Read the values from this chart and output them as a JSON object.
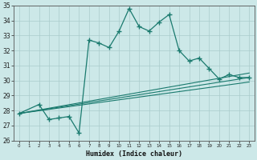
{
  "xlabel": "Humidex (Indice chaleur)",
  "bg_color": "#cce8e8",
  "grid_color": "#aacccc",
  "line_color": "#1a7a6e",
  "xlim": [
    -0.5,
    23.5
  ],
  "ylim": [
    26,
    35
  ],
  "xticks": [
    0,
    1,
    2,
    3,
    4,
    5,
    6,
    7,
    8,
    9,
    10,
    11,
    12,
    13,
    14,
    15,
    16,
    17,
    18,
    19,
    20,
    21,
    22,
    23
  ],
  "yticks": [
    26,
    27,
    28,
    29,
    30,
    31,
    32,
    33,
    34,
    35
  ],
  "series_main": {
    "x": [
      0,
      2,
      3,
      4,
      5,
      6,
      7,
      8,
      9,
      10,
      11,
      12,
      13,
      14,
      15,
      16,
      17,
      18,
      19,
      20,
      21,
      22,
      23
    ],
    "y": [
      27.8,
      28.4,
      27.4,
      27.5,
      27.6,
      26.5,
      32.7,
      32.5,
      32.2,
      33.3,
      34.8,
      33.6,
      33.3,
      33.9,
      34.4,
      32.0,
      31.3,
      31.5,
      30.8,
      30.1,
      30.4,
      30.2,
      30.2
    ]
  },
  "series_fan": [
    {
      "x": [
        0,
        23
      ],
      "y": [
        27.8,
        29.9
      ]
    },
    {
      "x": [
        0,
        23
      ],
      "y": [
        27.8,
        30.2
      ]
    },
    {
      "x": [
        0,
        23
      ],
      "y": [
        27.8,
        30.5
      ]
    }
  ]
}
